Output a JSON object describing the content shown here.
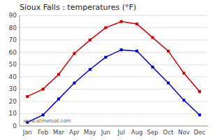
{
  "chart_data": {
    "type": "line",
    "title": "Sioux Falls : temperatures (°F)",
    "categories": [
      "Jan",
      "Feb",
      "Mar",
      "Apr",
      "May",
      "Jun",
      "Jul",
      "Aug",
      "Sep",
      "Oct",
      "Nov",
      "Dec"
    ],
    "series": [
      {
        "color": "#cc0000",
        "marker": "square",
        "values": [
          24,
          30,
          42,
          59,
          70,
          80,
          85,
          83,
          72,
          61,
          43,
          28
        ]
      },
      {
        "color": "#0000cc",
        "marker": "square",
        "values": [
          3,
          9,
          22,
          35,
          46,
          56,
          62,
          61,
          48,
          35,
          21,
          9
        ]
      }
    ],
    "ylim": [
      0,
      90
    ],
    "yticks": [
      0,
      10,
      20,
      30,
      40,
      50,
      60,
      70,
      80,
      90
    ],
    "grid": true,
    "annotations": [
      "www.allmetsat.com"
    ]
  }
}
